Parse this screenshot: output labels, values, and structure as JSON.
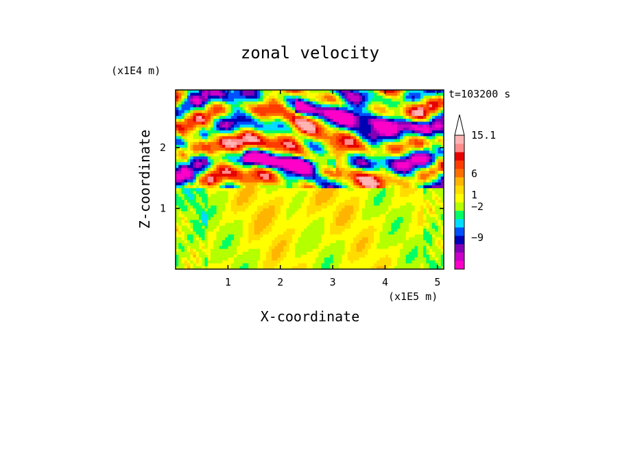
{
  "chart_data": {
    "type": "heatmap",
    "title": "zonal velocity",
    "time_label": "t=103200 s",
    "xlabel": "X-coordinate",
    "ylabel": "Z-coordinate",
    "x_scale_label": "(x1E5 m)",
    "y_scale_label": "(x1E4 m)",
    "x_ticks": [
      "1",
      "2",
      "3",
      "4",
      "5"
    ],
    "y_ticks": [
      "1",
      "2"
    ],
    "xlim": [
      0,
      5.12
    ],
    "ylim": [
      0,
      2.95
    ],
    "colorbar": {
      "levels": [
        {
          "color": "#ff00c8"
        },
        {
          "color": "#c800c8"
        },
        {
          "color": "#8200b4"
        },
        {
          "color": "#0000b4"
        },
        {
          "color": "#0050ff"
        },
        {
          "color": "#00dcff"
        },
        {
          "color": "#00ff64"
        },
        {
          "color": "#b4ff00"
        },
        {
          "color": "#ffff00"
        },
        {
          "color": "#ffdc00"
        },
        {
          "color": "#ffb400"
        },
        {
          "color": "#ff6e00"
        },
        {
          "color": "#ff3c00"
        },
        {
          "color": "#e60000"
        },
        {
          "color": "#ff8c8c"
        },
        {
          "color": "#ffb4b4"
        }
      ],
      "labels": [
        {
          "text": "15.1",
          "level": 15.1
        },
        {
          "text": "6",
          "level": 6
        },
        {
          "text": "1",
          "level": 1
        },
        {
          "text": "-2",
          "level": -2
        },
        {
          "text": "-9",
          "level": -9
        }
      ],
      "extend": "max"
    }
  }
}
